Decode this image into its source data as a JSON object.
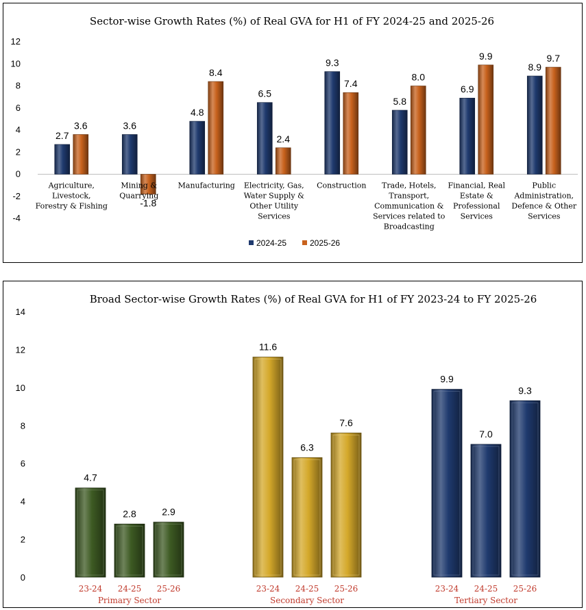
{
  "chart_data": [
    {
      "type": "bar",
      "title": "Sector-wise Growth Rates (%) of Real GVA for H1 of FY 2024-25 and 2025-26",
      "categories": [
        [
          "Agriculture,",
          "Livestock,",
          "Forestry & Fishing"
        ],
        [
          "Mining &",
          "Quarrying"
        ],
        [
          "Manufacturing"
        ],
        [
          "Electricity, Gas,",
          "Water Supply &",
          "Other Utility",
          "Services"
        ],
        [
          "Construction"
        ],
        [
          "Trade, Hotels,",
          "Transport,",
          "Communication &",
          "Services related to",
          "Broadcasting"
        ],
        [
          "Financial, Real",
          "Estate &",
          "Professional",
          "Services"
        ],
        [
          "Public",
          "Administration,",
          "Defence & Other",
          "Services"
        ]
      ],
      "series": [
        {
          "name": "2024-25",
          "color": "#1f3a6e",
          "values": [
            2.7,
            3.6,
            4.8,
            6.5,
            9.3,
            5.8,
            6.9,
            8.9
          ]
        },
        {
          "name": "2025-26",
          "color": "#c8621d",
          "values": [
            3.6,
            -1.8,
            8.4,
            2.4,
            7.4,
            8.0,
            9.9,
            9.7
          ]
        }
      ],
      "value_labels": [
        [
          "2.7",
          "3.6",
          "4.8",
          "6.5",
          "9.3",
          "5.8",
          "6.9",
          "8.9"
        ],
        [
          "3.6",
          "-1.8",
          "8.4",
          "2.4",
          "7.4",
          "8.0",
          "9.9",
          "9.7"
        ]
      ],
      "ylim": [
        -4,
        12
      ],
      "yticks": [
        -4,
        -2,
        0,
        2,
        4,
        6,
        8,
        10,
        12
      ],
      "legend": "bottom-center",
      "grid": false
    },
    {
      "type": "bar",
      "title": "Broad Sector-wise Growth Rates (%) of Real GVA for H1 of FY 2023-24 to FY 2025-26",
      "groups": [
        {
          "name": "Primary Sector",
          "color": "#3d5a23",
          "labels": [
            "23-24",
            "24-25",
            "25-26"
          ],
          "values": [
            4.7,
            2.8,
            2.9
          ],
          "value_labels": [
            "4.7",
            "2.8",
            "2.9"
          ]
        },
        {
          "name": "Secondary Sector",
          "color": "#d4a82a",
          "labels": [
            "23-24",
            "24-25",
            "25-26"
          ],
          "values": [
            11.6,
            6.3,
            7.6
          ],
          "value_labels": [
            "11.6",
            "6.3",
            "7.6"
          ]
        },
        {
          "name": "Tertiary Sector",
          "color": "#1f3a6e",
          "labels": [
            "23-24",
            "24-25",
            "25-26"
          ],
          "values": [
            9.9,
            7.0,
            9.3
          ],
          "value_labels": [
            "9.9",
            "7.0",
            "9.3"
          ]
        }
      ],
      "ylim": [
        0,
        14
      ],
      "yticks": [
        0,
        2,
        4,
        6,
        8,
        10,
        12,
        14
      ],
      "grid": false
    }
  ]
}
